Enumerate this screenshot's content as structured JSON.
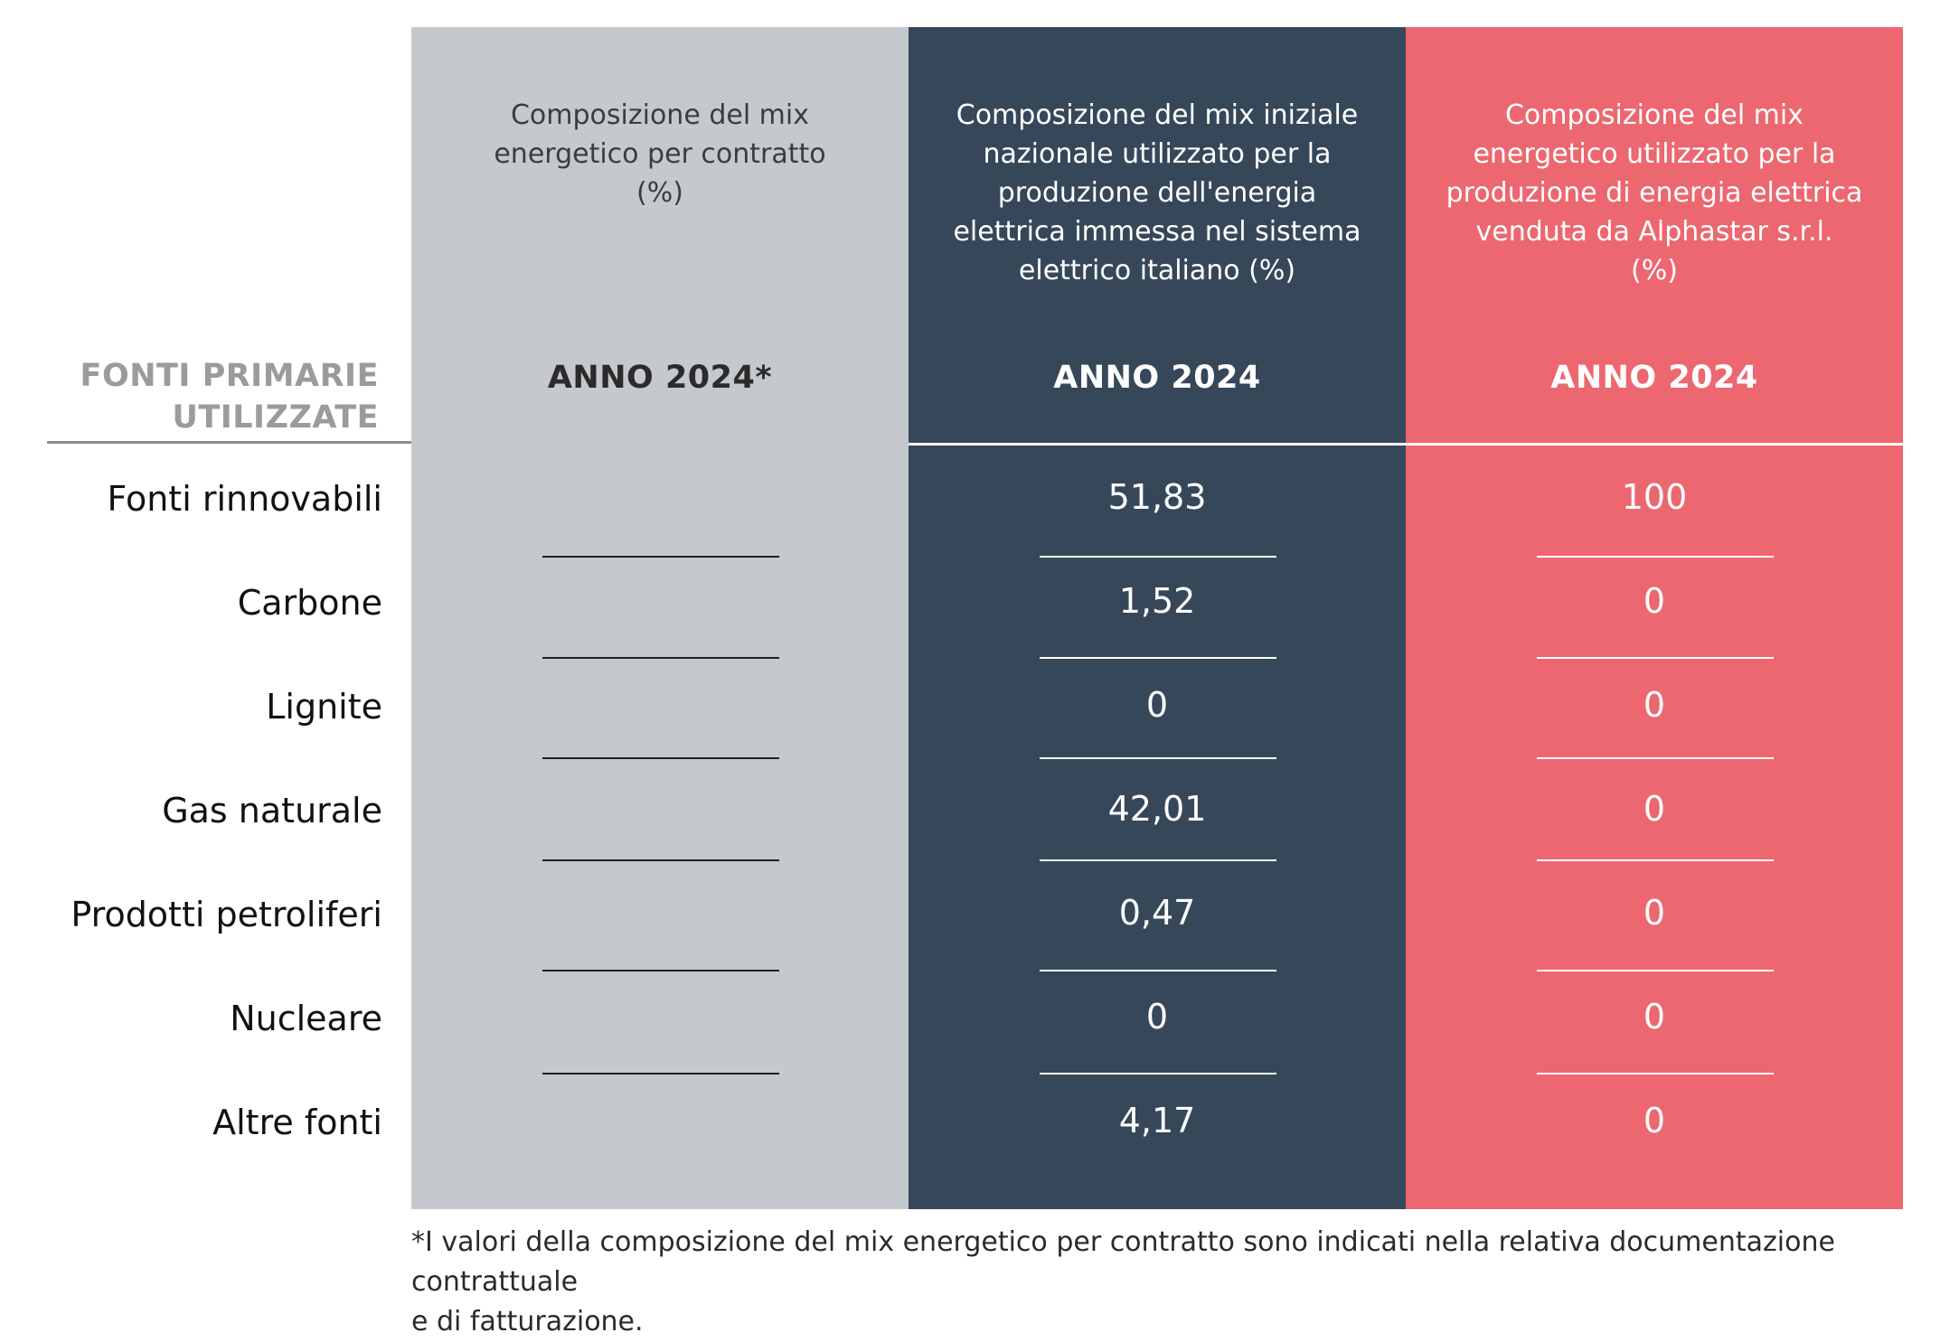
{
  "row_header": {
    "line1": "FONTI PRIMARIE",
    "line2": "UTILIZZATE"
  },
  "columns": [
    {
      "title_lines": [
        "Composizione del mix",
        "energetico per contratto",
        "(%)"
      ],
      "year": "ANNO 2024*",
      "values": [
        "",
        "",
        "",
        "",
        "",
        "",
        ""
      ],
      "color": "#c5c9ce"
    },
    {
      "title_lines": [
        "Composizione del mix iniziale",
        "nazionale utilizzato per la",
        "produzione dell'energia",
        "elettrica immessa nel sistema",
        "elettrico italiano (%)"
      ],
      "year": "ANNO 2024",
      "values": [
        "51,83",
        "1,52",
        "0",
        "42,01",
        "0,47",
        "0",
        "4,17"
      ],
      "color": "#37475a"
    },
    {
      "title_lines": [
        "Composizione del mix",
        "energetico utilizzato per la",
        "produzione di energia elettrica",
        "venduta da Alphastar s.r.l.",
        "(%)"
      ],
      "year": "ANNO 2024",
      "values": [
        "100",
        "0",
        "0",
        "0",
        "0",
        "0",
        "0"
      ],
      "color": "#ec6770"
    }
  ],
  "rows": [
    "Fonti rinnovabili",
    "Carbone",
    "Lignite",
    "Gas naturale",
    "Prodotti petroliferi",
    "Nucleare",
    "Altre fonti"
  ],
  "footnote": {
    "line1": "*I valori della composizione del mix energetico per contratto sono indicati nella relativa documentazione contrattuale",
    "line2": "e di fatturazione."
  }
}
